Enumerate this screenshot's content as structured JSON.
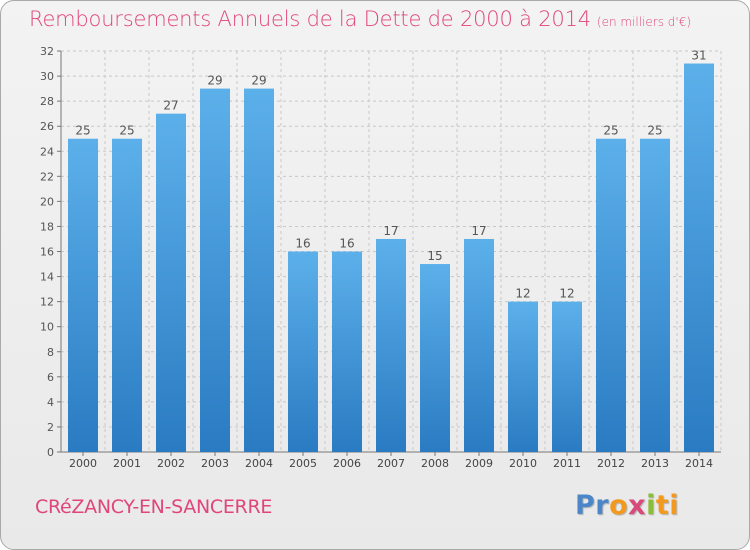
{
  "chart_data": {
    "type": "bar",
    "title": "Remboursements Annuels de la Dette de 2000 à 2014",
    "subtitle": "(en milliers d'€)",
    "categories": [
      "2000",
      "2001",
      "2002",
      "2003",
      "2004",
      "2005",
      "2006",
      "2007",
      "2008",
      "2009",
      "2010",
      "2011",
      "2012",
      "2013",
      "2014"
    ],
    "values": [
      25,
      25,
      27,
      29,
      29,
      16,
      16,
      17,
      15,
      17,
      12,
      12,
      25,
      25,
      31
    ],
    "ylim": [
      0,
      32
    ],
    "yticks": [
      0,
      2,
      4,
      6,
      8,
      10,
      12,
      14,
      16,
      18,
      20,
      22,
      24,
      26,
      28,
      30,
      32
    ],
    "xlabel": "",
    "ylabel": "",
    "grid": true,
    "bar_color": "#3a8fd5"
  },
  "footer": {
    "city": "CRéZANCY-EN-SANCERRE",
    "logo_parts": [
      "Pr",
      "o",
      "x",
      "i",
      "ti"
    ]
  }
}
